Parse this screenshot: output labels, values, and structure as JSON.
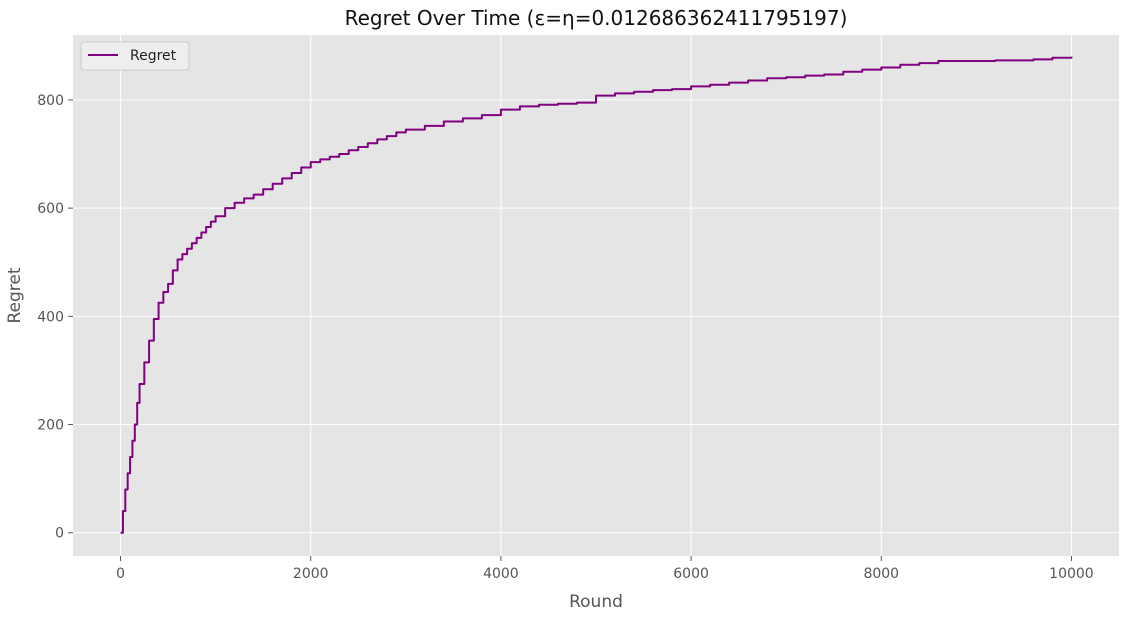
{
  "chart_data": {
    "type": "line",
    "title": "Regret Over Time (ε=η=0.012686362411795197)",
    "xlabel": "Round",
    "ylabel": "Regret",
    "xlim": [
      -500,
      10500
    ],
    "ylim": [
      -43,
      920
    ],
    "xticks": [
      0,
      2000,
      4000,
      6000,
      8000,
      10000
    ],
    "yticks": [
      0,
      200,
      400,
      600,
      800
    ],
    "grid": true,
    "legend": {
      "position": "top-left",
      "entries": [
        "Regret"
      ]
    },
    "colors": {
      "series": "#800080",
      "plot_background": "#e5e5e5",
      "grid": "#ffffff",
      "tick_text": "#555555",
      "title_text": "#111111"
    },
    "series": [
      {
        "name": "Regret",
        "x": [
          0,
          25,
          50,
          75,
          100,
          125,
          150,
          175,
          200,
          250,
          300,
          350,
          400,
          450,
          500,
          550,
          600,
          650,
          700,
          750,
          800,
          850,
          900,
          950,
          1000,
          1100,
          1200,
          1300,
          1400,
          1500,
          1600,
          1700,
          1800,
          1900,
          2000,
          2100,
          2200,
          2300,
          2400,
          2500,
          2600,
          2700,
          2800,
          2900,
          3000,
          3200,
          3400,
          3600,
          3800,
          4000,
          4200,
          4400,
          4600,
          4800,
          5000,
          5200,
          5400,
          5600,
          5800,
          6000,
          6200,
          6400,
          6600,
          6800,
          7000,
          7200,
          7400,
          7600,
          7800,
          8000,
          8200,
          8400,
          8600,
          8800,
          9000,
          9200,
          9400,
          9600,
          9800,
          10000
        ],
        "y": [
          0,
          40,
          80,
          110,
          140,
          170,
          200,
          240,
          275,
          315,
          355,
          395,
          425,
          445,
          460,
          485,
          505,
          515,
          525,
          535,
          545,
          555,
          565,
          575,
          585,
          600,
          610,
          618,
          625,
          635,
          645,
          655,
          665,
          675,
          685,
          690,
          695,
          700,
          707,
          713,
          720,
          727,
          733,
          740,
          745,
          752,
          760,
          766,
          772,
          782,
          788,
          791,
          793,
          795,
          808,
          812,
          815,
          818,
          820,
          825,
          828,
          832,
          836,
          840,
          842,
          845,
          847,
          852,
          856,
          860,
          865,
          868,
          872,
          872,
          872,
          873,
          873,
          875,
          878,
          880
        ]
      }
    ]
  }
}
